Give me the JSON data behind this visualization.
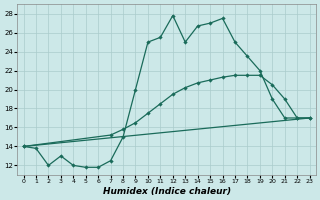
{
  "background_color": "#cce8e8",
  "grid_color": "#aacccc",
  "line_color": "#1a6b5a",
  "xlabel": "Humidex (Indice chaleur)",
  "xlim": [
    -0.5,
    23.5
  ],
  "ylim": [
    11.0,
    29.0
  ],
  "yticks": [
    12,
    14,
    16,
    18,
    20,
    22,
    24,
    26,
    28
  ],
  "xticks": [
    0,
    1,
    2,
    3,
    4,
    5,
    6,
    7,
    8,
    9,
    10,
    11,
    12,
    13,
    14,
    15,
    16,
    17,
    18,
    19,
    20,
    21,
    22,
    23
  ],
  "series": [
    {
      "x": [
        0,
        1,
        2,
        3,
        4,
        5,
        6,
        7,
        8,
        9,
        10,
        11,
        12,
        13,
        14,
        15,
        16,
        17,
        18,
        19,
        20,
        21,
        22,
        23
      ],
      "y": [
        14.0,
        13.8,
        12.0,
        13.0,
        12.0,
        11.8,
        11.8,
        12.5,
        15.0,
        20.0,
        25.0,
        25.5,
        27.8,
        25.0,
        26.7,
        27.0,
        27.5,
        25.0,
        23.5,
        22.0,
        19.0,
        17.0,
        17.0,
        17.0
      ],
      "marker": true
    },
    {
      "x": [
        0,
        7,
        8,
        9,
        10,
        11,
        12,
        13,
        14,
        15,
        16,
        17,
        18,
        19,
        20,
        21,
        22,
        23
      ],
      "y": [
        14.0,
        15.2,
        15.8,
        16.5,
        17.5,
        18.5,
        19.5,
        20.2,
        20.7,
        21.0,
        21.3,
        21.5,
        21.5,
        21.5,
        20.5,
        19.0,
        17.0,
        17.0
      ],
      "marker": true
    },
    {
      "x": [
        0,
        23
      ],
      "y": [
        14.0,
        17.0
      ],
      "marker": false
    }
  ]
}
